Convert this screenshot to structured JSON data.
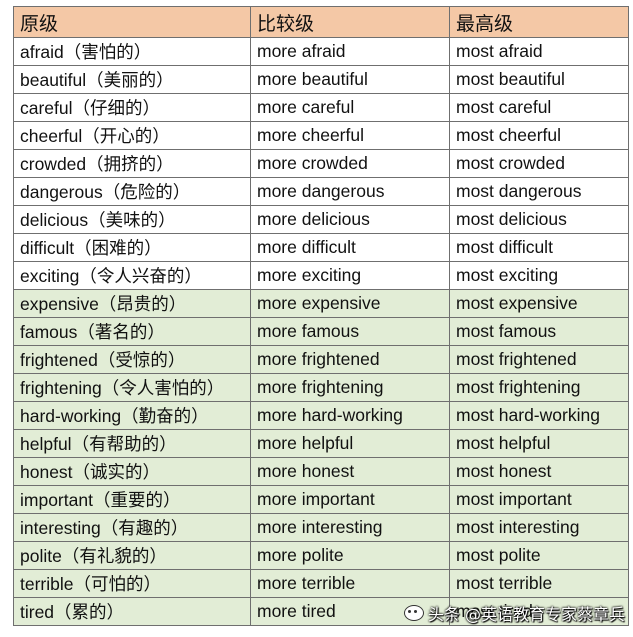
{
  "headers": [
    "原级",
    "比较级",
    "最高级"
  ],
  "rows": [
    {
      "base": "afraid（害怕的）",
      "comparative": "more afraid",
      "superlative": "most afraid",
      "shade": "white"
    },
    {
      "base": "beautiful（美丽的）",
      "comparative": "more beautiful",
      "superlative": "most beautiful",
      "shade": "white"
    },
    {
      "base": "careful（仔细的）",
      "comparative": "more careful",
      "superlative": "most careful",
      "shade": "white"
    },
    {
      "base": "cheerful（开心的）",
      "comparative": "more cheerful",
      "superlative": "most cheerful",
      "shade": "white"
    },
    {
      "base": "crowded（拥挤的）",
      "comparative": "more crowded",
      "superlative": "most crowded",
      "shade": "white"
    },
    {
      "base": "dangerous（危险的）",
      "comparative": "more dangerous",
      "superlative": "most dangerous",
      "shade": "white"
    },
    {
      "base": "delicious（美味的）",
      "comparative": "more delicious",
      "superlative": "most delicious",
      "shade": "white"
    },
    {
      "base": "difficult（困难的）",
      "comparative": "more difficult",
      "superlative": "most difficult",
      "shade": "white"
    },
    {
      "base": "exciting（令人兴奋的）",
      "comparative": "more exciting",
      "superlative": "most exciting",
      "shade": "white"
    },
    {
      "base": "expensive（昂贵的）",
      "comparative": "more expensive",
      "superlative": "most expensive",
      "shade": "green"
    },
    {
      "base": "famous（著名的）",
      "comparative": "more famous",
      "superlative": "most famous",
      "shade": "green"
    },
    {
      "base": "frightened（受惊的）",
      "comparative": "more frightened",
      "superlative": "most frightened",
      "shade": "green"
    },
    {
      "base": "frightening（令人害怕的）",
      "comparative": "more frightening",
      "superlative": "most frightening",
      "shade": "green"
    },
    {
      "base": "hard-working（勤奋的）",
      "comparative": "more hard-working",
      "superlative": "most hard-working",
      "shade": "green"
    },
    {
      "base": "helpful（有帮助的）",
      "comparative": "more helpful",
      "superlative": "most helpful",
      "shade": "green"
    },
    {
      "base": "honest（诚实的）",
      "comparative": "more honest",
      "superlative": "most honest",
      "shade": "green"
    },
    {
      "base": "important（重要的）",
      "comparative": "more important",
      "superlative": "most important",
      "shade": "green"
    },
    {
      "base": "interesting（有趣的）",
      "comparative": "more interesting",
      "superlative": "most interesting",
      "shade": "green"
    },
    {
      "base": "polite（有礼貌的）",
      "comparative": "more polite",
      "superlative": "most polite",
      "shade": "green"
    },
    {
      "base": "terrible（可怕的）",
      "comparative": "more terrible",
      "superlative": "most terrible",
      "shade": "green"
    },
    {
      "base": "tired（累的）",
      "comparative": "more tired",
      "superlative": "most tired",
      "shade": "green"
    }
  ],
  "colors": {
    "header_bg": "#f4c8a6",
    "green_row_bg": "#e2edd6",
    "border": "#6f6f6f"
  },
  "watermark": {
    "text": "头条 @英语教育专家蔡章兵",
    "icon": "wechat-logo-icon"
  }
}
